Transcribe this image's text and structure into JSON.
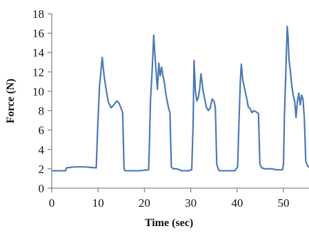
{
  "chart_data": {
    "type": "line",
    "title": "",
    "xlabel": "Time (sec)",
    "ylabel": "Force (N)",
    "xlim": [
      0,
      55.5
    ],
    "ylim": [
      0,
      18
    ],
    "x_ticks": [
      0,
      10,
      20,
      30,
      40,
      50
    ],
    "x_tick_labels": [
      "0",
      "10",
      "20",
      "30",
      "40",
      "50"
    ],
    "y_ticks": [
      0,
      2,
      4,
      6,
      8,
      10,
      12,
      14,
      16,
      18
    ],
    "y_tick_labels": [
      "0",
      "2",
      "4",
      "6",
      "8",
      "10",
      "12",
      "14",
      "16",
      "18"
    ],
    "grid": false,
    "legend": "none",
    "line_color": "#4A7AB5",
    "series": [
      {
        "x": [
          0,
          3.0,
          3.2,
          5,
          7,
          9.6,
          9.8,
          10.0,
          10.3,
          10.6,
          10.9,
          11.1,
          11.3,
          11.7,
          12.2,
          12.8,
          13.4,
          14.0,
          14.5,
          15.0,
          15.3,
          15.6,
          15.8,
          17,
          19,
          20.9,
          21.1,
          21.3,
          21.7,
          22.0,
          22.2,
          22.5,
          22.8,
          23.1,
          23.4,
          23.7,
          24.0,
          24.3,
          24.6,
          24.9,
          25.2,
          25.5,
          25.8,
          26.2,
          27,
          28,
          29.5,
          30.2,
          30.5,
          30.7,
          31.0,
          31.3,
          31.6,
          31.9,
          32.2,
          32.6,
          33.0,
          33.4,
          33.8,
          34.2,
          34.6,
          35.0,
          35.3,
          35.6,
          35.9,
          36.1,
          36.4,
          36.8,
          38,
          39.5,
          40.1,
          40.4,
          40.7,
          40.9,
          41.2,
          41.6,
          42.0,
          42.4,
          42.8,
          43.2,
          43.6,
          44.0,
          44.3,
          44.6,
          44.9,
          45.3,
          46,
          47.5,
          48.5,
          49.8,
          50.0,
          50.2,
          50.5,
          50.8,
          51.0,
          51.2,
          51.5,
          51.8,
          52.1,
          52.4,
          52.7,
          53.0,
          53.3,
          53.6,
          53.9,
          54.2,
          54.5,
          54.8,
          55.1,
          55.4
        ],
        "y": [
          1.8,
          1.8,
          2.1,
          2.2,
          2.2,
          2.1,
          4.8,
          7.2,
          10.5,
          12.0,
          13.5,
          12.5,
          11.6,
          10.3,
          8.9,
          8.3,
          8.6,
          9.0,
          8.8,
          8.2,
          7.8,
          2.0,
          1.8,
          1.8,
          1.8,
          1.9,
          5.0,
          9.0,
          12.5,
          15.8,
          14.2,
          12.2,
          10.2,
          12.9,
          11.6,
          12.5,
          11.6,
          10.9,
          9.8,
          9.0,
          8.3,
          7.8,
          2.2,
          2.0,
          2.0,
          1.8,
          1.8,
          1.9,
          6.5,
          13.2,
          10.0,
          9.0,
          9.3,
          10.2,
          11.8,
          10.2,
          9.2,
          8.3,
          8.0,
          8.3,
          9.2,
          9.0,
          8.3,
          2.5,
          2.0,
          1.8,
          1.8,
          1.8,
          1.8,
          1.8,
          2.2,
          7.0,
          11.2,
          12.8,
          11.2,
          10.3,
          9.4,
          8.4,
          8.2,
          7.8,
          8.0,
          7.9,
          7.8,
          7.7,
          2.5,
          2.1,
          2.0,
          2.0,
          1.9,
          1.9,
          2.5,
          7.5,
          12.0,
          16.7,
          15.5,
          13.2,
          12.0,
          10.5,
          9.6,
          9.0,
          7.3,
          9.0,
          9.8,
          8.6,
          9.6,
          9.2,
          7.2,
          2.8,
          2.4,
          2.2
        ]
      }
    ]
  }
}
